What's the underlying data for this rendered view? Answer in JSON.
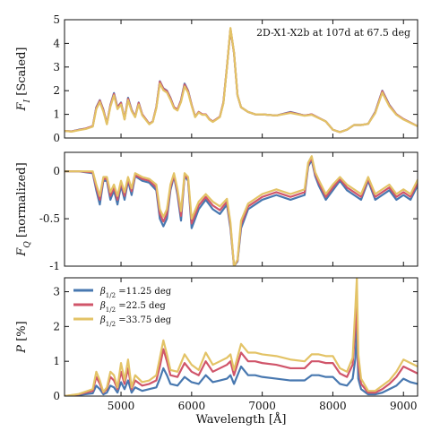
{
  "chart_data": {
    "type": "line",
    "xlabel": "Wavelength [Å]",
    "xlim": [
      4200,
      9200
    ],
    "xticks": [
      5000,
      6000,
      7000,
      8000,
      9000
    ],
    "legend": {
      "placement": "top-left",
      "panel": 3
    },
    "series_names": [
      "β1/2 =11.25 deg",
      "β1/2 =22.5 deg",
      "β1/2 =33.75 deg"
    ],
    "colors": [
      "#4878b0",
      "#d0556a",
      "#e3c366"
    ],
    "panels": [
      {
        "ylabel": "F_I [Scaled]",
        "annotation": "2D-X1-X2b at 107d at 67.5 deg",
        "ylim": [
          0,
          5
        ],
        "yticks": [
          0,
          1,
          2,
          3,
          4,
          5
        ],
        "x": [
          4200,
          4300,
          4400,
          4500,
          4600,
          4650,
          4700,
          4750,
          4800,
          4850,
          4900,
          4950,
          5000,
          5050,
          5100,
          5150,
          5200,
          5250,
          5300,
          5400,
          5450,
          5500,
          5550,
          5600,
          5650,
          5700,
          5750,
          5800,
          5850,
          5900,
          5950,
          6000,
          6050,
          6100,
          6150,
          6200,
          6250,
          6300,
          6350,
          6400,
          6450,
          6500,
          6550,
          6600,
          6650,
          6700,
          6800,
          6900,
          7000,
          7200,
          7400,
          7600,
          7700,
          7800,
          7900,
          8000,
          8100,
          8200,
          8300,
          8400,
          8500,
          8600,
          8700,
          8800,
          8900,
          9000,
          9100,
          9200
        ],
        "series": [
          {
            "name": "β1/2 =11.25 deg",
            "values": [
              0.3,
              0.28,
              0.35,
              0.4,
              0.5,
              1.3,
              1.6,
              1.2,
              0.6,
              1.4,
              1.9,
              1.3,
              1.5,
              0.8,
              1.7,
              1.2,
              0.9,
              1.5,
              1.0,
              0.6,
              0.7,
              1.3,
              2.4,
              2.1,
              2.0,
              1.7,
              1.3,
              1.2,
              1.6,
              2.3,
              2.0,
              1.4,
              0.9,
              1.1,
              1.0,
              1.0,
              0.8,
              0.7,
              0.8,
              0.9,
              1.5,
              3.0,
              4.6,
              3.6,
              1.8,
              1.3,
              1.1,
              1.0,
              1.0,
              0.95,
              1.1,
              0.95,
              1.0,
              0.85,
              0.7,
              0.35,
              0.25,
              0.35,
              0.55,
              0.55,
              0.6,
              1.1,
              2.0,
              1.4,
              1.0,
              0.8,
              0.65,
              0.5
            ]
          },
          {
            "name": "β1/2 =22.5 deg",
            "values": [
              0.3,
              0.28,
              0.34,
              0.4,
              0.5,
              1.27,
              1.58,
              1.18,
              0.6,
              1.38,
              1.86,
              1.28,
              1.48,
              0.8,
              1.66,
              1.18,
              0.9,
              1.48,
              1.0,
              0.6,
              0.7,
              1.3,
              2.38,
              2.08,
              1.98,
              1.68,
              1.3,
              1.2,
              1.58,
              2.26,
              1.98,
              1.4,
              0.9,
              1.1,
              1.0,
              1.0,
              0.8,
              0.7,
              0.8,
              0.9,
              1.5,
              3.0,
              4.62,
              3.6,
              1.8,
              1.3,
              1.1,
              1.0,
              1.0,
              0.95,
              1.08,
              0.95,
              1.0,
              0.85,
              0.7,
              0.35,
              0.25,
              0.35,
              0.55,
              0.55,
              0.6,
              1.08,
              1.98,
              1.38,
              1.0,
              0.8,
              0.65,
              0.5
            ]
          },
          {
            "name": "β1/2 =33.75 deg",
            "values": [
              0.3,
              0.27,
              0.33,
              0.38,
              0.48,
              1.22,
              1.52,
              1.12,
              0.58,
              1.32,
              1.8,
              1.22,
              1.42,
              0.78,
              1.6,
              1.14,
              0.88,
              1.42,
              0.96,
              0.58,
              0.68,
              1.26,
              2.3,
              2.02,
              1.92,
              1.62,
              1.26,
              1.16,
              1.52,
              2.18,
              1.92,
              1.36,
              0.88,
              1.08,
              0.98,
              0.98,
              0.78,
              0.68,
              0.78,
              0.88,
              1.46,
              2.98,
              4.65,
              3.62,
              1.8,
              1.3,
              1.1,
              1.0,
              1.0,
              0.95,
              1.06,
              0.94,
              0.98,
              0.84,
              0.7,
              0.35,
              0.25,
              0.35,
              0.55,
              0.55,
              0.6,
              1.05,
              1.92,
              1.34,
              0.98,
              0.78,
              0.64,
              0.5
            ]
          }
        ]
      },
      {
        "ylabel": "F_Q [normalized]",
        "ylim": [
          -1.0,
          0.2
        ],
        "yticks": [
          -1.0,
          -0.5,
          0.0
        ],
        "x": [
          4200,
          4400,
          4600,
          4650,
          4700,
          4750,
          4800,
          4850,
          4900,
          4950,
          5000,
          5050,
          5100,
          5150,
          5200,
          5300,
          5400,
          5500,
          5550,
          5600,
          5650,
          5700,
          5750,
          5800,
          5850,
          5900,
          5950,
          6000,
          6100,
          6200,
          6300,
          6400,
          6500,
          6550,
          6600,
          6650,
          6700,
          6800,
          6900,
          7000,
          7200,
          7400,
          7600,
          7650,
          7700,
          7750,
          7800,
          7900,
          8000,
          8100,
          8200,
          8300,
          8400,
          8500,
          8600,
          8700,
          8800,
          8900,
          9000,
          9100,
          9200
        ],
        "series": [
          {
            "name": "β1/2 =11.25 deg",
            "values": [
              0.0,
              0.0,
              -0.02,
              -0.2,
              -0.35,
              -0.1,
              -0.1,
              -0.3,
              -0.2,
              -0.35,
              -0.15,
              -0.3,
              -0.1,
              -0.25,
              -0.05,
              -0.1,
              -0.12,
              -0.2,
              -0.5,
              -0.58,
              -0.5,
              -0.2,
              -0.05,
              -0.25,
              -0.52,
              -0.05,
              -0.1,
              -0.6,
              -0.4,
              -0.3,
              -0.4,
              -0.45,
              -0.35,
              -0.6,
              -1.0,
              -0.95,
              -0.6,
              -0.4,
              -0.35,
              -0.3,
              -0.25,
              -0.3,
              -0.25,
              0.05,
              0.12,
              -0.05,
              -0.15,
              -0.3,
              -0.2,
              -0.1,
              -0.2,
              -0.25,
              -0.3,
              -0.1,
              -0.3,
              -0.25,
              -0.2,
              -0.3,
              -0.25,
              -0.3,
              -0.15
            ]
          },
          {
            "name": "β1/2 =22.5 deg",
            "values": [
              0.0,
              0.0,
              -0.01,
              -0.17,
              -0.3,
              -0.08,
              -0.08,
              -0.26,
              -0.17,
              -0.3,
              -0.12,
              -0.26,
              -0.08,
              -0.21,
              -0.04,
              -0.08,
              -0.1,
              -0.17,
              -0.45,
              -0.53,
              -0.45,
              -0.17,
              -0.04,
              -0.22,
              -0.47,
              -0.04,
              -0.08,
              -0.55,
              -0.36,
              -0.27,
              -0.36,
              -0.41,
              -0.32,
              -0.57,
              -1.0,
              -0.94,
              -0.56,
              -0.37,
              -0.32,
              -0.27,
              -0.22,
              -0.27,
              -0.22,
              0.07,
              0.14,
              -0.03,
              -0.12,
              -0.27,
              -0.17,
              -0.08,
              -0.17,
              -0.22,
              -0.27,
              -0.08,
              -0.27,
              -0.22,
              -0.17,
              -0.27,
              -0.22,
              -0.27,
              -0.12
            ]
          },
          {
            "name": "β1/2 =33.75 deg",
            "values": [
              0.0,
              0.0,
              0.0,
              -0.14,
              -0.26,
              -0.06,
              -0.06,
              -0.22,
              -0.14,
              -0.26,
              -0.1,
              -0.22,
              -0.06,
              -0.18,
              -0.02,
              -0.06,
              -0.08,
              -0.14,
              -0.4,
              -0.48,
              -0.4,
              -0.14,
              -0.02,
              -0.19,
              -0.42,
              -0.02,
              -0.06,
              -0.5,
              -0.32,
              -0.24,
              -0.32,
              -0.37,
              -0.29,
              -0.54,
              -1.0,
              -0.93,
              -0.52,
              -0.34,
              -0.29,
              -0.24,
              -0.19,
              -0.24,
              -0.19,
              0.09,
              0.16,
              -0.01,
              -0.09,
              -0.24,
              -0.14,
              -0.06,
              -0.14,
              -0.19,
              -0.24,
              -0.06,
              -0.24,
              -0.19,
              -0.14,
              -0.24,
              -0.19,
              -0.24,
              -0.09
            ]
          }
        ]
      },
      {
        "ylabel": "P [%]",
        "ylim": [
          0,
          3.4
        ],
        "yticks": [
          0,
          1,
          2,
          3
        ],
        "x": [
          4200,
          4400,
          4600,
          4650,
          4700,
          4750,
          4800,
          4850,
          4900,
          4950,
          5000,
          5050,
          5100,
          5150,
          5200,
          5300,
          5400,
          5500,
          5550,
          5600,
          5650,
          5700,
          5800,
          5900,
          6000,
          6100,
          6200,
          6300,
          6400,
          6500,
          6550,
          6600,
          6700,
          6800,
          6900,
          7000,
          7200,
          7400,
          7600,
          7700,
          7800,
          7900,
          8000,
          8100,
          8200,
          8280,
          8320,
          8340,
          8360,
          8400,
          8500,
          8600,
          8700,
          8800,
          8900,
          9000,
          9100,
          9200
        ],
        "series": [
          {
            "name": "β1/2 =11.25 deg",
            "values": [
              0.0,
              0.03,
              0.08,
              0.3,
              0.2,
              0.05,
              0.1,
              0.3,
              0.25,
              0.1,
              0.4,
              0.2,
              0.45,
              0.1,
              0.25,
              0.15,
              0.2,
              0.25,
              0.5,
              0.8,
              0.6,
              0.35,
              0.3,
              0.55,
              0.4,
              0.35,
              0.6,
              0.4,
              0.45,
              0.5,
              0.6,
              0.35,
              0.85,
              0.6,
              0.6,
              0.55,
              0.5,
              0.45,
              0.45,
              0.6,
              0.6,
              0.55,
              0.55,
              0.35,
              0.3,
              0.5,
              1.1,
              2.0,
              0.5,
              0.2,
              0.05,
              0.05,
              0.1,
              0.2,
              0.3,
              0.5,
              0.4,
              0.35
            ]
          },
          {
            "name": "β1/2 =22.5 deg",
            "values": [
              0.0,
              0.05,
              0.15,
              0.55,
              0.35,
              0.1,
              0.2,
              0.55,
              0.45,
              0.2,
              0.7,
              0.35,
              0.8,
              0.2,
              0.45,
              0.3,
              0.35,
              0.45,
              0.85,
              1.35,
              1.0,
              0.6,
              0.55,
              0.95,
              0.7,
              0.6,
              1.0,
              0.7,
              0.8,
              0.9,
              1.0,
              0.6,
              1.25,
              1.0,
              1.0,
              0.95,
              0.9,
              0.8,
              0.8,
              1.0,
              1.0,
              0.95,
              0.95,
              0.65,
              0.55,
              0.9,
              2.0,
              2.6,
              0.9,
              0.35,
              0.1,
              0.1,
              0.2,
              0.35,
              0.55,
              0.85,
              0.75,
              0.65
            ]
          },
          {
            "name": "β1/2 =33.75 deg",
            "values": [
              0.0,
              0.06,
              0.2,
              0.7,
              0.45,
              0.12,
              0.25,
              0.7,
              0.6,
              0.25,
              0.95,
              0.45,
              1.05,
              0.25,
              0.6,
              0.4,
              0.45,
              0.6,
              1.1,
              1.6,
              1.2,
              0.75,
              0.7,
              1.2,
              0.9,
              0.75,
              1.25,
              0.9,
              1.0,
              1.1,
              1.2,
              0.75,
              1.5,
              1.25,
              1.25,
              1.2,
              1.15,
              1.05,
              1.0,
              1.2,
              1.2,
              1.15,
              1.15,
              0.8,
              0.7,
              1.1,
              2.6,
              3.4,
              1.2,
              0.5,
              0.15,
              0.15,
              0.3,
              0.45,
              0.7,
              1.05,
              0.95,
              0.85
            ]
          }
        ]
      }
    ]
  }
}
